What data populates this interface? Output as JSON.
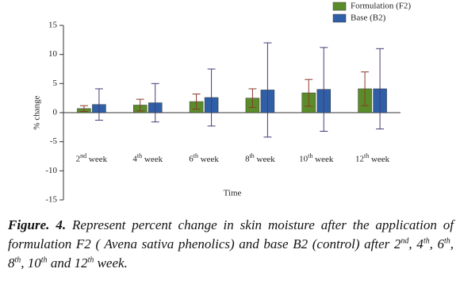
{
  "chart_data": {
    "type": "bar",
    "categories": [
      "2nd week",
      "4th week",
      "6th week",
      "8th week",
      "10th week",
      "12th week"
    ],
    "series": [
      {
        "name": "Formulation (F2)",
        "color": "#5b8c2a",
        "error_color": "#8a3a2a",
        "values": [
          0.7,
          1.3,
          1.9,
          2.5,
          3.4,
          4.1
        ],
        "errors": [
          0.5,
          1.0,
          1.3,
          1.6,
          2.3,
          2.9
        ]
      },
      {
        "name": "Base (B2)",
        "color": "#2f5fa6",
        "error_color": "#4a3a78",
        "values": [
          1.4,
          1.7,
          2.6,
          3.9,
          4.0,
          4.1
        ],
        "errors": [
          2.7,
          3.3,
          4.9,
          8.1,
          7.2,
          6.9
        ]
      }
    ],
    "ylabel": "% change",
    "xlabel": "Time",
    "ylim": [
      -15,
      15
    ],
    "yticks": [
      -15,
      -10,
      -5,
      0,
      5,
      10,
      15
    ],
    "legend": "top-right"
  },
  "caption": {
    "label": "Figure. 4.",
    "text": "Represent percent change in skin moisture after the application of formulation F2 ( Avena sativa phenolics) and base B2 (control) after 2nd, 4th, 6th, 8th, 10th and 12th week."
  }
}
